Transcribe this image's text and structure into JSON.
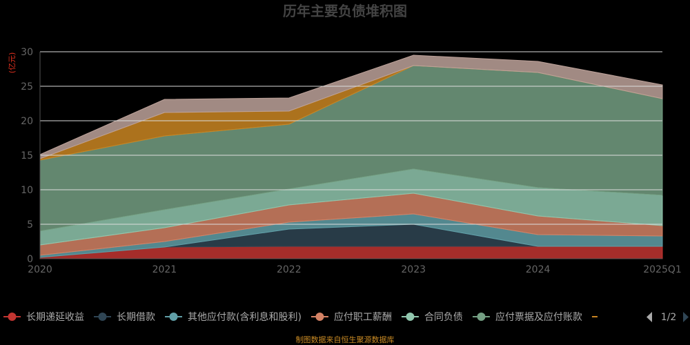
{
  "chart_data": {
    "type": "area",
    "title": "历年主要负债堆积图",
    "unit_label": "(亿元)",
    "categories": [
      "2020",
      "2021",
      "2022",
      "2023",
      "2024",
      "2025Q1"
    ],
    "ylim": [
      0,
      30
    ],
    "yticks": [
      "0",
      "5",
      "10",
      "15",
      "20",
      "25",
      "30"
    ],
    "grid": true,
    "series": [
      {
        "name": "长期递延收益",
        "color": "#c23531",
        "values": [
          0.2,
          1.7,
          1.8,
          1.8,
          1.8,
          1.8
        ]
      },
      {
        "name": "长期借款",
        "color": "#2f4554",
        "values": [
          0.0,
          0.0,
          2.5,
          3.2,
          0.0,
          0.0
        ]
      },
      {
        "name": "其他应付款(含利息和股利)",
        "color": "#61a0a8",
        "values": [
          0.3,
          0.8,
          1.0,
          1.5,
          1.7,
          1.5
        ]
      },
      {
        "name": "应付职工薪酬",
        "color": "#d48265",
        "values": [
          1.5,
          2.0,
          2.5,
          3.0,
          2.7,
          1.5
        ]
      },
      {
        "name": "合同负债",
        "color": "#91c7ae",
        "values": [
          2.0,
          2.6,
          2.3,
          3.5,
          4.1,
          4.4
        ]
      },
      {
        "name": "应付票据及应付账款",
        "color": "#749f83",
        "values": [
          10.3,
          10.7,
          9.4,
          15.0,
          16.7,
          14.0
        ]
      },
      {
        "name": "",
        "color": "#ca8622",
        "values": [
          0.2,
          3.4,
          1.9,
          0.0,
          0.0,
          0.0
        ]
      },
      {
        "name": "",
        "color": "#bda29a",
        "values": [
          0.6,
          1.9,
          1.9,
          1.5,
          1.6,
          2.0
        ]
      }
    ],
    "legend_page": "1/2",
    "source": "制图数据来自恒生聚源数据库"
  }
}
